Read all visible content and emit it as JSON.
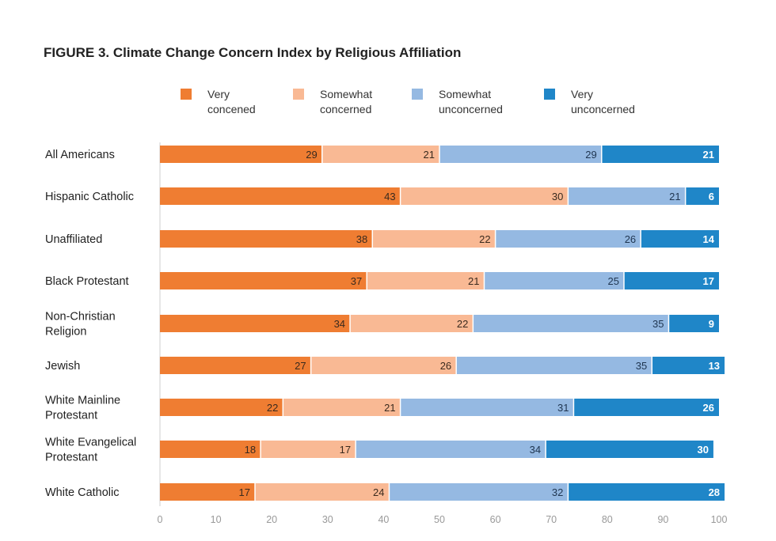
{
  "chart_data": {
    "type": "bar",
    "orientation": "horizontal",
    "stacked": true,
    "title": "FIGURE 3.  Climate Change Concern Index by Religious Affiliation",
    "categories": [
      "All Americans",
      "Hispanic Catholic",
      "Unaffiliated",
      "Black Protestant",
      "Non-Christian\nReligion",
      "Jewish",
      "White Mainline\nProtestant",
      "White Evangelical\nProtestant",
      "White Catholic"
    ],
    "series": [
      {
        "name": "Very\nconcened",
        "color": "#ef7d32",
        "label_color": "#3a2a1e",
        "values": [
          29,
          43,
          38,
          37,
          34,
          27,
          22,
          18,
          17
        ]
      },
      {
        "name": "Somewhat\nconcerned",
        "color": "#f9b994",
        "label_color": "#3a2a1e",
        "values": [
          21,
          30,
          22,
          21,
          22,
          26,
          21,
          17,
          24
        ]
      },
      {
        "name": "Somewhat\nunconcerned",
        "color": "#95b9e2",
        "label_color": "#1f3550",
        "values": [
          29,
          21,
          26,
          25,
          35,
          35,
          31,
          34,
          32
        ]
      },
      {
        "name": "Very\nunconcerned",
        "color": "#1f86c8",
        "label_color": "#ffffff",
        "values": [
          21,
          6,
          14,
          17,
          9,
          13,
          26,
          30,
          28
        ]
      }
    ],
    "xlim": [
      0,
      100
    ],
    "xticks": [
      "0",
      "10",
      "20",
      "30",
      "40",
      "50",
      "60",
      "70",
      "80",
      "90",
      "100"
    ],
    "grid": false,
    "legend_position": "top"
  }
}
